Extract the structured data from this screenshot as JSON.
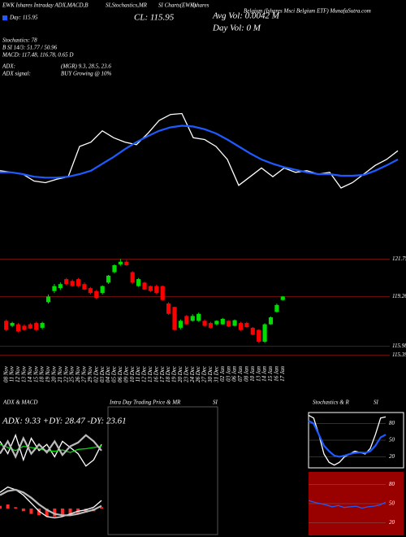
{
  "header": {
    "symbol_line": "EWK Ishares Intraday ADX,MACD,B",
    "indicators_a": "SI,Stochastics,MR",
    "indicators_b": "SI Charts(EWK)",
    "issuer": "Ishares",
    "name_site": "Belgium (Ishares Msci Belgium ETF) MunafaSutra.com",
    "day": "Day: 115.95",
    "close": "CL: 115.95",
    "avg_vol": "Avg Vol: 0.0042 M",
    "day_vol": "Day Vol: 0  M",
    "stochastics": "Stochastics: 78",
    "bsi": "B  SI 14/3: 51.77 / 50.96",
    "macd": "MACD: 117.48, 116.78, 0.65 D",
    "adx_label": "ADX:",
    "adx_value": "(MGR) 9.3, 28.5, 23.6",
    "adx_signal_label": "ADX  signal:",
    "adx_signal_value": "BUY Growing @ 10%",
    "panel_adx": "ADX & MACD",
    "panel_intraday": "Intra Day Trading Price & MR",
    "panel_intraday_si": "SI",
    "panel_stoch": "Stochastics & R",
    "panel_stoch_si": "SI"
  },
  "chart_data": [
    {
      "type": "line",
      "ylim": [
        0,
        100
      ],
      "series": [
        {
          "color": "#ffffff",
          "values": [
            32.5,
            31.3,
            30,
            25,
            23.8,
            26.3,
            28.1,
            50,
            53.1,
            61.3,
            56.3,
            53.1,
            51.3,
            59.4,
            68.8,
            73.1,
            73.8,
            56.3,
            55,
            50,
            40.6,
            21.9,
            28.1,
            34.4,
            28.1,
            34.4,
            31.3,
            32.5,
            30,
            31.3,
            20,
            23.8,
            30,
            36.3,
            40.6,
            46.9
          ]
        },
        {
          "color": "#1e5bff",
          "values": [
            31.3,
            31.3,
            30,
            28.1,
            27.5,
            27.5,
            28.1,
            30,
            32.5,
            37.5,
            42.5,
            48.1,
            53.1,
            57.5,
            61.3,
            63.8,
            65,
            64.4,
            62.5,
            59.4,
            55,
            50,
            45,
            40.6,
            37.5,
            35,
            33.1,
            31.3,
            30,
            30,
            28.8,
            28.8,
            29.4,
            32.5,
            36.3,
            40.6
          ]
        }
      ]
    },
    {
      "type": "candlestick",
      "up_color": "#00dd00",
      "down_color": "#ff0000",
      "level_color": "#8b1010",
      "ylim": [
        115.2,
        122.2
      ],
      "yticks": [
        115.39,
        115.98,
        119.26,
        121.75
      ],
      "categories": [
        "08 Nov",
        "11 Nov",
        "12 Nov",
        "13 Nov",
        "14 Nov",
        "15 Nov",
        "18 Nov",
        "19 Nov",
        "20 Nov",
        "21 Nov",
        "22 Nov",
        "25 Nov",
        "26 Nov",
        "27 Nov",
        "29 Nov",
        "02 Dec",
        "03 Dec",
        "04 Dec",
        "05 Dec",
        "06 Dec",
        "09 Dec",
        "10 Dec",
        "11 Dec",
        "12 Dec",
        "13 Dec",
        "16 Dec",
        "17 Dec",
        "18 Dec",
        "19 Dec",
        "20 Dec",
        "23 Dec",
        "24 Dec",
        "26 Dec",
        "27 Dec",
        "30 Dec",
        "31 Dec",
        "02 Jan",
        "03 Jan",
        "06 Jan",
        "07 Jan",
        "08 Jan",
        "10 Jan",
        "13 Jan",
        "14 Jan",
        "15 Jan",
        "16 Jan",
        "17 Jan"
      ],
      "open": [
        117.66,
        117.33,
        117.43,
        117.33,
        117.43,
        117.52,
        117.2,
        118.9,
        119.63,
        119.82,
        120.42,
        120.3,
        120.42,
        120.09,
        119.82,
        119.63,
        119.5,
        120.19,
        120.88,
        121.4,
        121.57,
        120.88,
        119.96,
        120.19,
        119.96,
        119.96,
        119.96,
        118.81,
        118.58,
        117.2,
        117.98,
        117.66,
        117.66,
        117.66,
        117.52,
        117.43,
        117.43,
        117.66,
        117.33,
        117.52,
        117.52,
        117.2,
        117.06,
        116.28,
        117.43,
        118.25,
        119.04
      ],
      "high": [
        117.75,
        117.6,
        117.52,
        117.43,
        117.52,
        117.6,
        117.6,
        119.4,
        120.1,
        120.2,
        120.5,
        120.4,
        120.5,
        120.2,
        119.9,
        119.7,
        120.0,
        120.7,
        121.4,
        121.75,
        121.7,
        120.95,
        120.5,
        120.25,
        120.0,
        120.05,
        120.0,
        118.9,
        118.6,
        117.75,
        118.05,
        118.1,
        118.2,
        117.75,
        117.6,
        117.7,
        117.85,
        117.7,
        117.75,
        117.6,
        117.6,
        117.25,
        117.1,
        117.5,
        117.95,
        118.8,
        119.3
      ],
      "low": [
        116.97,
        117.24,
        116.9,
        117.0,
        117.1,
        117.0,
        117.1,
        118.8,
        119.5,
        119.7,
        120.0,
        119.9,
        119.9,
        119.7,
        119.4,
        119.1,
        119.4,
        120.1,
        120.8,
        121.3,
        121.3,
        120.1,
        119.9,
        119.7,
        119.55,
        119.45,
        119.0,
        118.05,
        117.0,
        117.1,
        117.4,
        117.6,
        117.6,
        117.3,
        117.15,
        117.35,
        117.4,
        117.25,
        117.3,
        117.0,
        117.2,
        116.7,
        116.2,
        116.2,
        117.4,
        118.2,
        119.0
      ],
      "close": [
        117.06,
        117.52,
        116.97,
        117.06,
        117.15,
        117.06,
        117.52,
        119.27,
        119.96,
        120.09,
        120.09,
        119.96,
        119.96,
        119.73,
        119.5,
        119.17,
        119.96,
        120.65,
        121.34,
        121.57,
        121.34,
        120.19,
        120.42,
        119.73,
        119.63,
        119.5,
        119.04,
        118.12,
        117.06,
        117.66,
        117.43,
        117.98,
        118.12,
        117.33,
        117.2,
        117.66,
        117.79,
        117.29,
        117.7,
        117.06,
        117.24,
        116.74,
        116.28,
        117.43,
        117.89,
        118.71,
        119.27
      ]
    },
    {
      "type": "line",
      "label": "ADX: 9.33 +DY: 28.47 -DY: 23.61",
      "ylim": [
        0,
        100
      ],
      "series": [
        {
          "color": "#ffffff",
          "values": [
            60,
            40,
            70,
            30,
            65,
            45,
            55,
            35,
            60,
            50,
            40,
            20,
            30,
            55
          ]
        },
        {
          "color": "#00dd00",
          "values": [
            55,
            50,
            45,
            52,
            50,
            48,
            45,
            44,
            46,
            42,
            47,
            48,
            50,
            52
          ]
        },
        {
          "color": "#bbbbbb",
          "values": [
            40,
            60,
            35,
            65,
            40,
            55,
            42,
            60,
            38,
            52,
            58,
            70,
            60,
            45
          ]
        }
      ]
    },
    {
      "type": "line",
      "ylim": [
        -1,
        1
      ],
      "histogram": {
        "color": "#ff2a2a",
        "values": [
          0.1,
          0.15,
          0.05,
          -0.1,
          -0.2,
          -0.25,
          -0.3,
          -0.3,
          -0.28,
          -0.25,
          -0.2,
          -0.15,
          -0.1,
          0.05
        ]
      },
      "series": [
        {
          "color": "#ffffff",
          "values": [
            0.6,
            0.8,
            0.7,
            0.5,
            0.2,
            -0.1,
            -0.3,
            -0.35,
            -0.3,
            -0.2,
            -0.1,
            -0.05,
            0.05,
            0.3
          ]
        },
        {
          "color": "#bbbbbb",
          "values": [
            0.5,
            0.65,
            0.7,
            0.6,
            0.4,
            0.15,
            -0.05,
            -0.2,
            -0.25,
            -0.25,
            -0.2,
            -0.12,
            -0.05,
            0.1
          ]
        }
      ]
    },
    {
      "type": "line",
      "background": "#000000",
      "border": "#ffffff",
      "ylim": [
        0,
        100
      ],
      "yticks": [
        20,
        50,
        80
      ],
      "series": [
        {
          "color": "#ffffff",
          "values": [
            95,
            90,
            60,
            25,
            10,
            5,
            10,
            20,
            25,
            30,
            28,
            25,
            35,
            60,
            90,
            92
          ]
        },
        {
          "color": "#1e5bff",
          "values": [
            85,
            80,
            60,
            40,
            30,
            22,
            20,
            22,
            25,
            27,
            28,
            27,
            30,
            40,
            55,
            60
          ]
        }
      ]
    },
    {
      "type": "line",
      "background": "#990000",
      "ylim": [
        0,
        100
      ],
      "yticks": [
        20,
        50,
        80
      ],
      "series": [
        {
          "color": "#1e5bff",
          "values": [
            55,
            52,
            50,
            48,
            45,
            47,
            44,
            45,
            46,
            43,
            45,
            46,
            48,
            52
          ]
        }
      ]
    }
  ]
}
